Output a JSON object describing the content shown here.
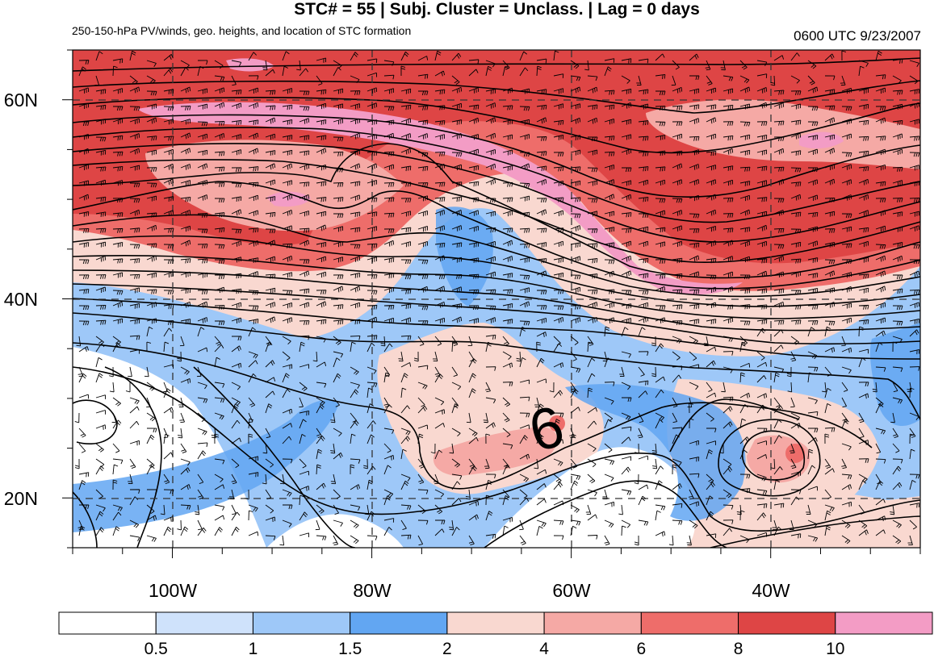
{
  "title": "STC# = 55 | Subj. Cluster = Unclass. | Lag = 0 days",
  "subtitle": "250-150-hPa PV/winds, geo. heights, and location of STC formation",
  "timestamp": "0600 UTC  9/23/2007",
  "map": {
    "lat_range": [
      15,
      65
    ],
    "lon_range": [
      -110,
      -25
    ],
    "lat_labels": [
      {
        "lat": 60,
        "text": "60N"
      },
      {
        "lat": 40,
        "text": "40N"
      },
      {
        "lat": 20,
        "text": "20N"
      }
    ],
    "lon_labels": [
      {
        "lon": -100,
        "text": "100W"
      },
      {
        "lon": -80,
        "text": "80W"
      },
      {
        "lon": -60,
        "text": "60W"
      },
      {
        "lon": -40,
        "text": "40W"
      }
    ],
    "stc_symbol": {
      "text": "6",
      "lat": 27,
      "lon": -64
    },
    "gridlines": "dashed"
  },
  "colorbar": {
    "labels": [
      "0.5",
      "1",
      "1.5",
      "2",
      "4",
      "6",
      "8",
      "10"
    ],
    "colors": [
      "#ffffff",
      "#cfe2fb",
      "#9ec8f8",
      "#62a6f2",
      "#f9d8d0",
      "#f5a9a5",
      "#ee6d6a",
      "#de4545",
      "#f39cc5"
    ]
  },
  "pv_colors": {
    "white": "#ffffff",
    "light_blue": "#cfe2fb",
    "mid_blue": "#9ec8f8",
    "blue": "#62a6f2",
    "light_pink": "#f9d8d0",
    "pink": "#f5a9a5",
    "salmon": "#ee6d6a",
    "red": "#de4545",
    "magenta": "#f39cc5"
  }
}
